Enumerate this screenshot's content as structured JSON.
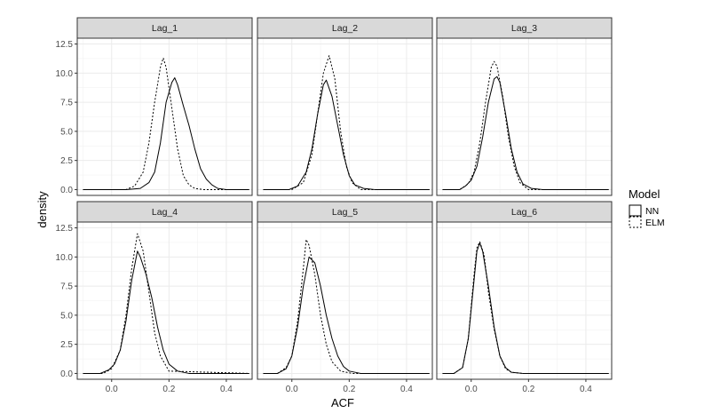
{
  "chart_data": {
    "type": "line",
    "subtype": "faceted density plot",
    "xlabel": "ACF",
    "ylabel": "density",
    "xlim": [
      -0.12,
      0.49
    ],
    "ylim": [
      -0.5,
      13.0
    ],
    "x_ticks": [
      0.0,
      0.2,
      0.4
    ],
    "x_tick_labels": [
      "0.0",
      "0.2",
      "0.4"
    ],
    "y_ticks": [
      0.0,
      2.5,
      5.0,
      7.5,
      10.0,
      12.5
    ],
    "y_tick_labels": [
      "0.0",
      "2.5",
      "5.0",
      "7.5",
      "10.0",
      "12.5"
    ],
    "grid": true,
    "legend": {
      "title": "Model",
      "position": "right",
      "entries": [
        {
          "label": "NN",
          "linetype": "solid"
        },
        {
          "label": "ELM",
          "linetype": "dashed"
        }
      ]
    },
    "colors": {
      "line": "#000000",
      "strip_fill": "#d9d9d9",
      "grid": "#ebebeb",
      "panel_border": "#333333"
    },
    "facets": [
      {
        "label": "Lag_1",
        "series": [
          {
            "name": "NN",
            "x": [
              -0.1,
              0.05,
              0.1,
              0.13,
              0.15,
              0.17,
              0.19,
              0.21,
              0.22,
              0.23,
              0.25,
              0.27,
              0.29,
              0.31,
              0.33,
              0.35,
              0.37,
              0.4,
              0.48
            ],
            "y": [
              0.0,
              0.0,
              0.1,
              0.6,
              1.5,
              4.0,
              7.5,
              9.2,
              9.6,
              9.0,
              7.2,
              5.5,
              3.5,
              1.8,
              0.9,
              0.4,
              0.1,
              0.0,
              0.0
            ]
          },
          {
            "name": "ELM",
            "x": [
              -0.1,
              0.05,
              0.08,
              0.11,
              0.13,
              0.15,
              0.17,
              0.18,
              0.19,
              0.21,
              0.23,
              0.25,
              0.27,
              0.29,
              0.32,
              0.48
            ],
            "y": [
              0.0,
              0.0,
              0.3,
              1.5,
              4.0,
              7.5,
              10.5,
              11.3,
              10.5,
              7.0,
              3.5,
              1.2,
              0.4,
              0.1,
              0.0,
              0.0
            ]
          }
        ]
      },
      {
        "label": "Lag_2",
        "series": [
          {
            "name": "NN",
            "x": [
              -0.1,
              -0.01,
              0.02,
              0.05,
              0.07,
              0.09,
              0.11,
              0.12,
              0.14,
              0.16,
              0.18,
              0.2,
              0.22,
              0.25,
              0.29,
              0.48
            ],
            "y": [
              0.0,
              0.0,
              0.3,
              1.5,
              3.5,
              6.5,
              9.0,
              9.4,
              8.0,
              5.5,
              3.0,
              1.2,
              0.4,
              0.1,
              0.0,
              0.0
            ]
          },
          {
            "name": "ELM",
            "x": [
              -0.1,
              0.0,
              0.04,
              0.07,
              0.09,
              0.11,
              0.13,
              0.15,
              0.17,
              0.19,
              0.21,
              0.24,
              0.48
            ],
            "y": [
              0.0,
              0.0,
              0.6,
              3.0,
              6.5,
              10.0,
              11.5,
              9.5,
              5.0,
              2.0,
              0.6,
              0.0,
              0.0
            ]
          }
        ]
      },
      {
        "label": "Lag_3",
        "series": [
          {
            "name": "NN",
            "x": [
              -0.1,
              -0.04,
              -0.02,
              0.0,
              0.02,
              0.04,
              0.06,
              0.08,
              0.09,
              0.1,
              0.12,
              0.14,
              0.16,
              0.18,
              0.21,
              0.25,
              0.48
            ],
            "y": [
              0.0,
              0.0,
              0.3,
              0.8,
              2.0,
              4.5,
              7.5,
              9.5,
              9.7,
              9.2,
              6.5,
              3.5,
              1.5,
              0.5,
              0.1,
              0.0,
              0.0
            ]
          },
          {
            "name": "ELM",
            "x": [
              -0.1,
              -0.04,
              -0.01,
              0.01,
              0.03,
              0.05,
              0.07,
              0.08,
              0.09,
              0.11,
              0.13,
              0.15,
              0.17,
              0.2,
              0.48
            ],
            "y": [
              0.0,
              0.0,
              0.5,
              1.5,
              4.0,
              7.5,
              10.5,
              11.0,
              10.6,
              8.0,
              4.5,
              2.0,
              0.6,
              0.0,
              0.0
            ]
          }
        ]
      },
      {
        "label": "Lag_4",
        "series": [
          {
            "name": "NN",
            "x": [
              -0.1,
              -0.04,
              -0.01,
              0.01,
              0.03,
              0.05,
              0.07,
              0.09,
              0.1,
              0.12,
              0.14,
              0.16,
              0.18,
              0.2,
              0.23,
              0.27,
              0.48
            ],
            "y": [
              0.0,
              0.0,
              0.3,
              0.8,
              2.0,
              4.5,
              8.0,
              10.5,
              10.0,
              8.5,
              6.5,
              4.0,
              2.0,
              0.8,
              0.2,
              0.0,
              0.0
            ]
          },
          {
            "name": "ELM",
            "x": [
              -0.1,
              -0.03,
              0.0,
              0.03,
              0.05,
              0.07,
              0.09,
              0.11,
              0.13,
              0.15,
              0.17,
              0.2,
              0.48
            ],
            "y": [
              0.0,
              0.0,
              0.4,
              2.0,
              5.0,
              9.0,
              12.0,
              10.5,
              7.0,
              3.5,
              1.5,
              0.2,
              0.0
            ]
          }
        ]
      },
      {
        "label": "Lag_5",
        "series": [
          {
            "name": "NN",
            "x": [
              -0.1,
              -0.05,
              -0.02,
              0.0,
              0.02,
              0.04,
              0.06,
              0.08,
              0.1,
              0.12,
              0.14,
              0.16,
              0.18,
              0.2,
              0.24,
              0.48
            ],
            "y": [
              0.0,
              0.0,
              0.4,
              1.5,
              4.0,
              7.5,
              10.0,
              9.5,
              7.5,
              5.0,
              3.0,
              1.5,
              0.6,
              0.2,
              0.0,
              0.0
            ]
          },
          {
            "name": "ELM",
            "x": [
              -0.1,
              -0.05,
              -0.02,
              0.0,
              0.02,
              0.04,
              0.05,
              0.06,
              0.08,
              0.1,
              0.12,
              0.14,
              0.17,
              0.21,
              0.48
            ],
            "y": [
              0.0,
              0.0,
              0.5,
              1.5,
              4.5,
              9.0,
              11.5,
              11.0,
              8.5,
              5.0,
              2.5,
              1.0,
              0.2,
              0.0,
              0.0
            ]
          }
        ]
      },
      {
        "label": "Lag_6",
        "series": [
          {
            "name": "NN",
            "x": [
              -0.1,
              -0.06,
              -0.03,
              -0.01,
              0.01,
              0.02,
              0.03,
              0.04,
              0.06,
              0.08,
              0.1,
              0.12,
              0.14,
              0.18,
              0.48
            ],
            "y": [
              0.0,
              0.0,
              0.5,
              3.0,
              8.0,
              10.5,
              11.2,
              10.5,
              7.5,
              4.0,
              1.5,
              0.5,
              0.1,
              0.0,
              0.0
            ]
          },
          {
            "name": "ELM",
            "x": [
              -0.1,
              -0.06,
              -0.03,
              -0.01,
              0.01,
              0.02,
              0.03,
              0.045,
              0.06,
              0.08,
              0.1,
              0.12,
              0.14,
              0.18,
              0.48
            ],
            "y": [
              0.0,
              0.0,
              0.5,
              3.0,
              8.5,
              10.8,
              11.3,
              10.2,
              7.0,
              3.8,
              1.5,
              0.4,
              0.1,
              0.0,
              0.0
            ]
          }
        ]
      }
    ]
  }
}
